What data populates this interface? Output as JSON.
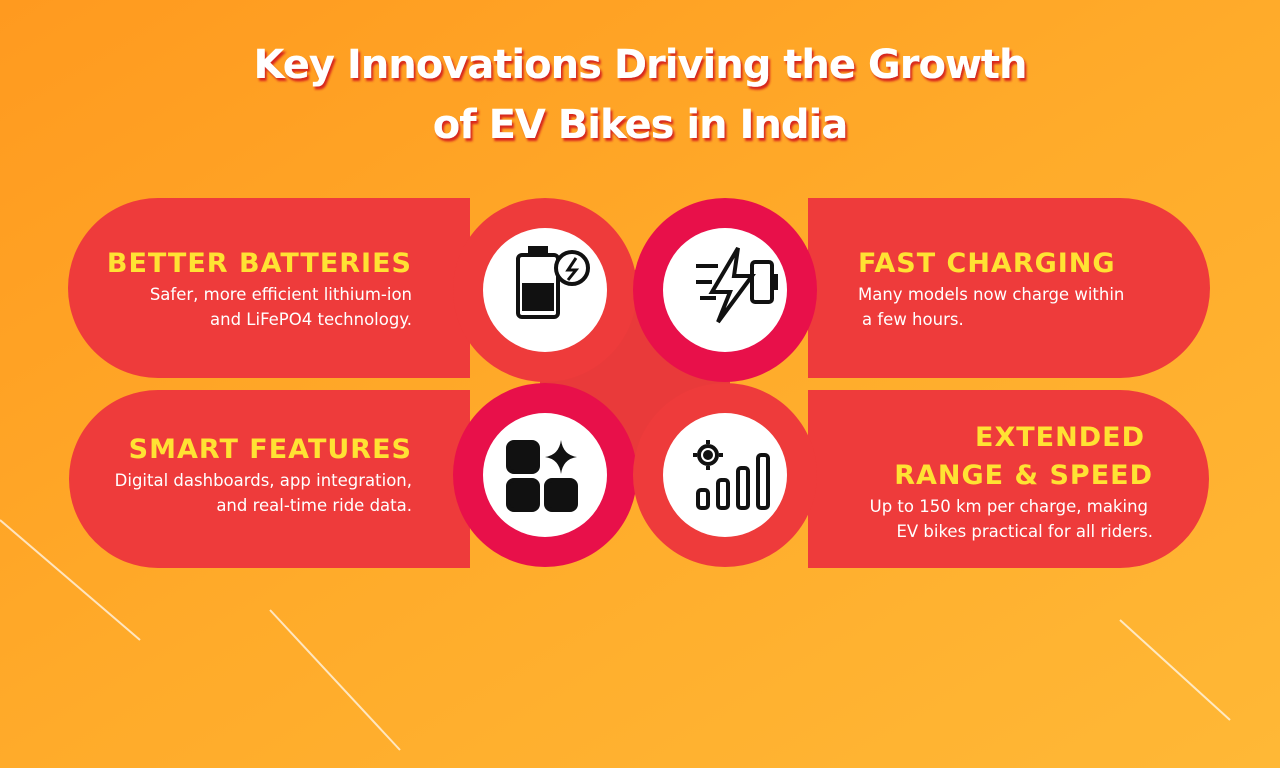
{
  "title": [
    "Key Innovations Driving the Growth",
    "of EV Bikes in India"
  ],
  "items": [
    {
      "heading": [
        "BETTER BATTERIES"
      ],
      "description": [
        "Safer, more efficient lithium-ion",
        "and LiFePO4 technology."
      ]
    },
    {
      "heading": [
        "FAST CHARGING"
      ],
      "description": [
        "Many models now charge within",
        "a few hours."
      ]
    },
    {
      "heading": [
        "SMART FEATURES"
      ],
      "description": [
        "Digital dashboards, app integration,",
        "and real-time ride data."
      ]
    },
    {
      "heading": [
        "EXTENDED",
        "RANGE & SPEED"
      ],
      "description": [
        "Up to 150 km per charge, making",
        "EV bikes practical for all riders."
      ]
    }
  ]
}
